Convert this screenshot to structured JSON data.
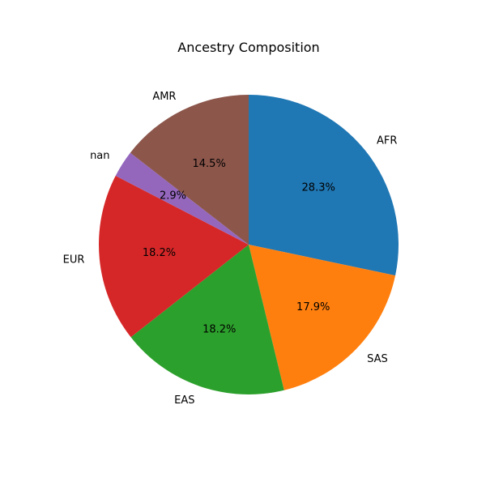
{
  "chart_data": {
    "type": "pie",
    "title": "Ancestry Composition",
    "start_angle_deg": 90,
    "direction": "clockwise",
    "slices": [
      {
        "label": "AFR",
        "value": 28.3,
        "pct_label": "28.3%",
        "color": "#1f77b4"
      },
      {
        "label": "SAS",
        "value": 17.9,
        "pct_label": "17.9%",
        "color": "#ff7f0e"
      },
      {
        "label": "EAS",
        "value": 18.2,
        "pct_label": "18.2%",
        "color": "#2ca02c"
      },
      {
        "label": "EUR",
        "value": 18.2,
        "pct_label": "18.2%",
        "color": "#d62728"
      },
      {
        "label": "nan",
        "value": 2.9,
        "pct_label": "2.9%",
        "color": "#9467bd"
      },
      {
        "label": "AMR",
        "value": 14.5,
        "pct_label": "14.5%",
        "color": "#8c564b"
      }
    ]
  }
}
